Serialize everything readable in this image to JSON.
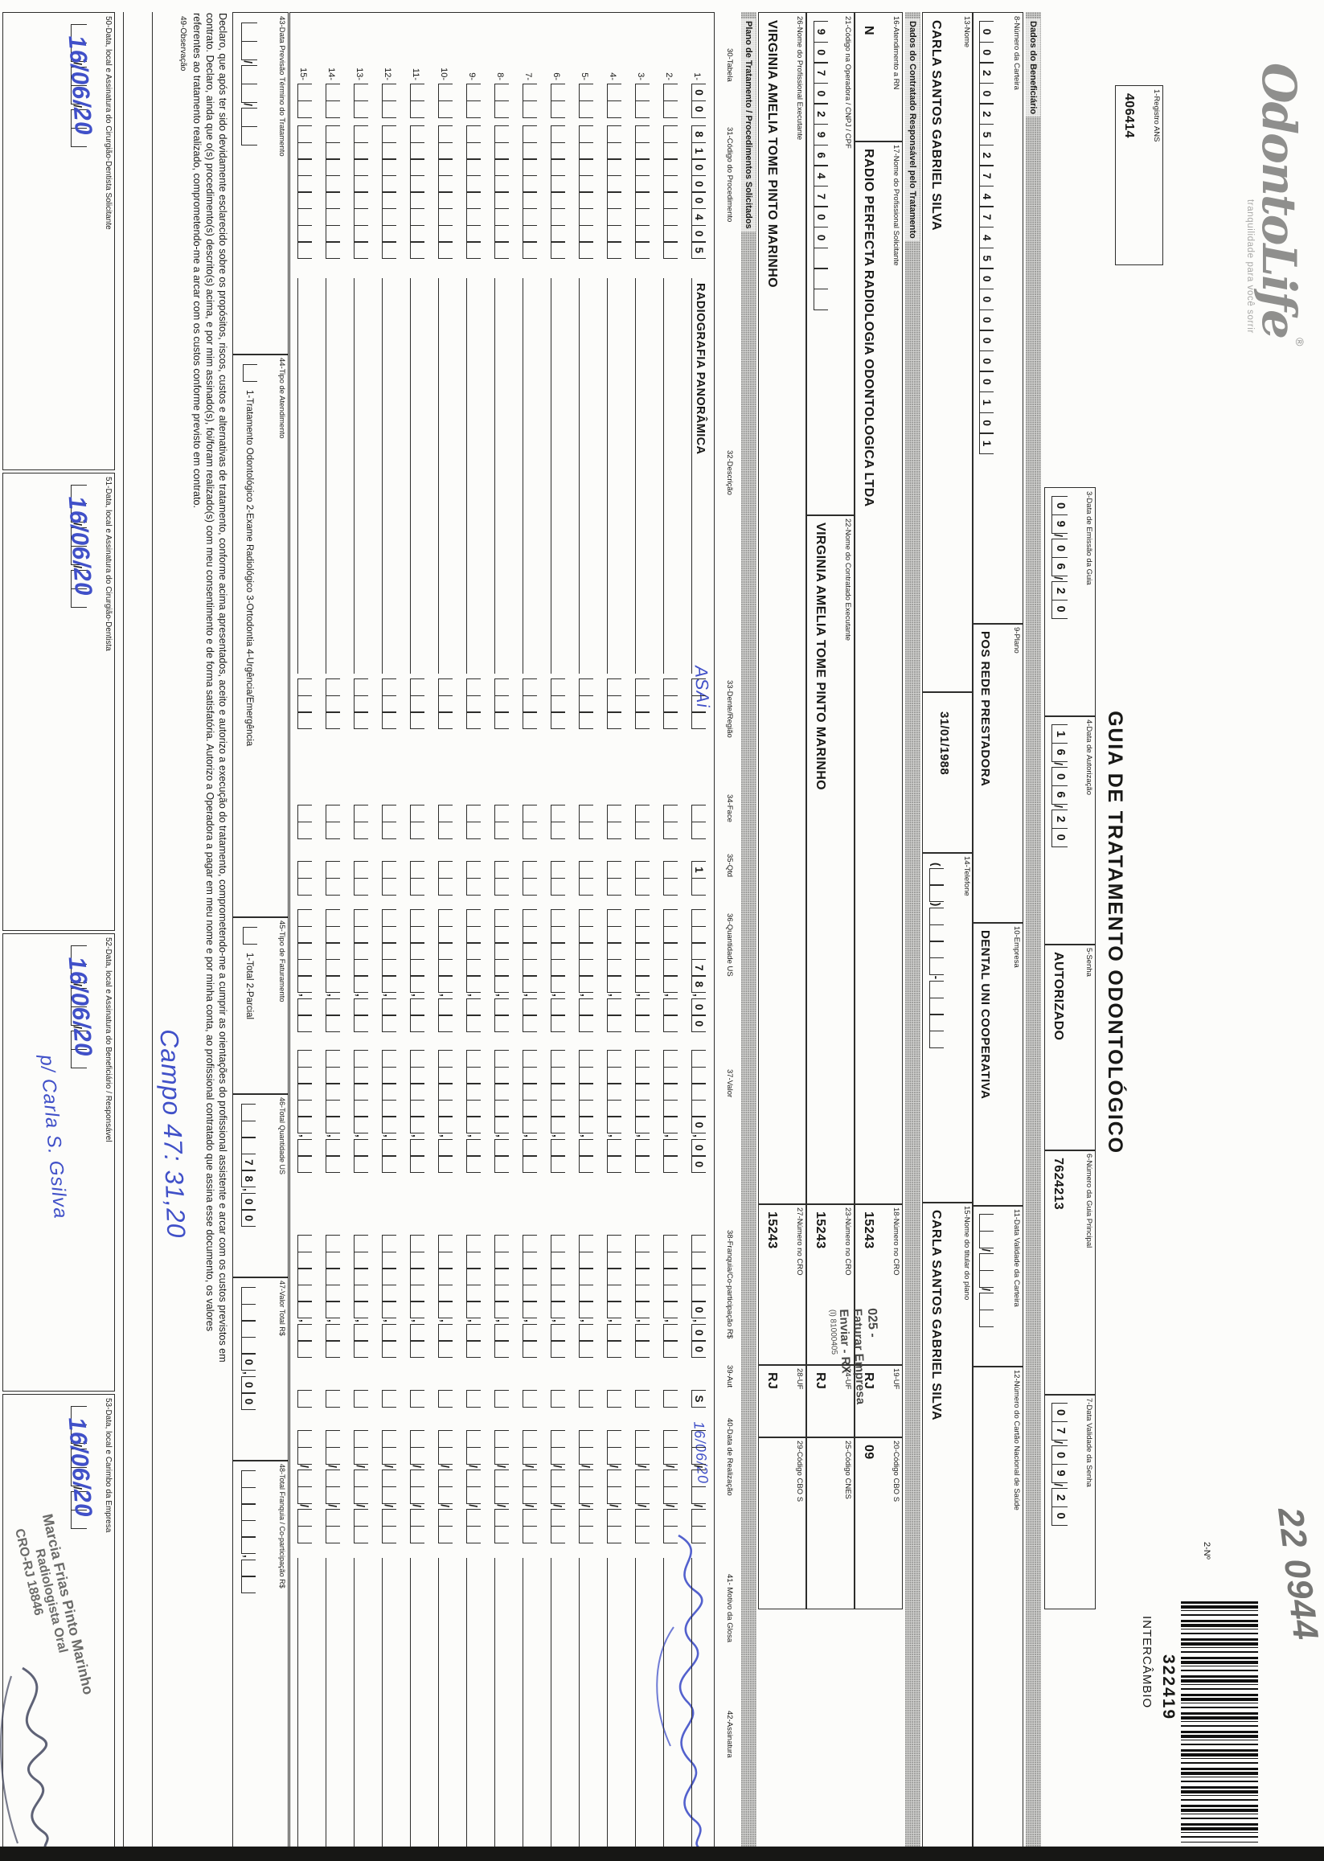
{
  "header": {
    "logo": "OdontoLife",
    "logo_reg": "®",
    "tagline": "tranquilidade para você sorrir",
    "pencil_note": "22 0944",
    "registro": {
      "label": "1-Registro ANS",
      "value": "406414"
    },
    "title": "GUIA DE TRATAMENTO ODONTOLÓGICO",
    "numero_label": "2-Nº",
    "barcode_number": "322419",
    "barcode_caption": "INTERCÂMBIO"
  },
  "guia": {
    "emissao": {
      "label": "3-Data de Emissão da Guia",
      "value": "09/06/20"
    },
    "autorizacao": {
      "label": "4-Data de Autorização",
      "value": "16/06/20"
    },
    "senha": {
      "label": "5-Senha",
      "value": "AUTORIZADO"
    },
    "guia_principal": {
      "label": "6-Número da Guia Principal",
      "value": "7624213"
    },
    "validade_senha": {
      "label": "7-Data Validade da Senha",
      "value": "07/09/20"
    }
  },
  "beneficiario": {
    "section": "Dados do Beneficiário",
    "carteira": {
      "label": "8-Número da Carteira",
      "value": "002025274745000000101"
    },
    "plano": {
      "label": "9-Plano",
      "value": "POS REDE PRESTADORA"
    },
    "empresa": {
      "label": "10-Empresa",
      "value": "DENTAL UNI COOPERATIVA"
    },
    "validade_carteira": {
      "label": "11-Data Validade da Carteira",
      "value": ""
    },
    "cns": {
      "label": "12-Número do Cartão Nacional de Saúde",
      "value": ""
    },
    "nome": {
      "label": "13-Nome",
      "value": "CARLA SANTOS GABRIEL SILVA"
    },
    "nascimento": {
      "value": "31/01/1988"
    },
    "telefone": {
      "label": "14-Telefone",
      "value": ""
    },
    "titular": {
      "label": "15-Nome do titular do plano",
      "value": "CARLA SANTOS GABRIEL SILVA"
    }
  },
  "contratado": {
    "section": "Dados do Contratado Responsável pelo Tratamento",
    "rn": {
      "label": "16-Atendimento a RN",
      "value": "N"
    },
    "solicitante": {
      "label": "17-Nome do Profissional Solicitante",
      "value": "RADIO PERFECTA RADIOLOGIA ODONTOLOGICA LTDA"
    },
    "cro_solicitante": {
      "label": "18-Número no CRO",
      "value": "15243"
    },
    "uf_solicitante": {
      "label": "19-UF",
      "value": "RJ"
    },
    "cbo_solicitante": {
      "label": "20-Código CBO S",
      "value": "09"
    },
    "codigo_operadora": {
      "label": "21-Código na Operadora / CNPJ / CPF",
      "value": "90702964700"
    },
    "executante": {
      "label": "22-Nome do Contratado Executante",
      "value": "VIRGINIA AMELIA TOME PINTO MARINHO"
    },
    "cro_executante": {
      "label": "23-Número no CRO",
      "value": "15243"
    },
    "uf_executante": {
      "label": "24-UF",
      "value": "RJ"
    },
    "cnes": {
      "label": "25-Código CNES",
      "value": ""
    },
    "stamp": {
      "line1": "025 -",
      "line2": "Faturar Empresa",
      "line3": "Enviar - RX",
      "line4": "(l) 81000405"
    },
    "profissional_executante": {
      "label": "26-Nome do Profissional Executante",
      "value": "VIRGINIA AMELIA TOME PINTO MARINHO"
    },
    "cro_profissional": {
      "label": "27-Número no CRO",
      "value": "15243"
    },
    "uf_profissional": {
      "label": "28-UF",
      "value": "RJ"
    },
    "cbo_profissional": {
      "label": "29-Código CBO S",
      "value": ""
    }
  },
  "tratamento": {
    "section": "Plano de Tratamento / Procedimentos Solicitados",
    "headers": {
      "tabela": "30-Tabela",
      "codigo": "31-Código do Procedimento",
      "descricao": "32-Descrição",
      "dente": "33-Dente/Região",
      "face": "34-Face",
      "qtd": "35-Qtd",
      "us": "36-Quantidade US",
      "valor": "37-Valor",
      "franquia": "38-Franquia/Co-participação R$",
      "aut": "39-Aut",
      "data": "40-Data de Realização",
      "glosa": "41- Motivo da Glosa",
      "assinatura": "42-Assinatura"
    },
    "row_numbers": [
      "1-",
      "2-",
      "3-",
      "4-",
      "5-",
      "6-",
      "7-",
      "8-",
      "9-",
      "10-",
      "11-",
      "12-",
      "13-",
      "14-",
      "15-"
    ],
    "row1": {
      "tabela": "00",
      "codigo": "81000405",
      "descricao": "RADIOGRAFIA PANORÂMICA",
      "dente_handwritten": "ASAi",
      "qtd": "1",
      "us": "78,00",
      "valor": "0,00",
      "franquia": "0,00",
      "aut": "S",
      "data_handwritten": "16/06/20"
    }
  },
  "totais": {
    "previsao": {
      "label": "43-Data Previsão Término do Tratamento",
      "value": ""
    },
    "tipo_atendimento": {
      "label": "44-Tipo de Atendimento",
      "options": "1-Tratamento Odontológico  2-Exame Radiológico  3-Ortodontia  4-Urgência/Emergência"
    },
    "tipo_faturamento": {
      "label": "45-Tipo de Faturamento",
      "options": "1-Total  2-Parcial"
    },
    "total_us": {
      "label": "46-Total Quantidade US",
      "value": "78,00"
    },
    "valor_total": {
      "label": "47-Valor Total R$",
      "value": "0,00"
    },
    "total_franquia": {
      "label": "48-Total Franquia / Co-participação R$",
      "value": ""
    }
  },
  "declaracao": {
    "line1": "Declaro, que após ter sido devidamente esclarecido sobre os propósitos, riscos, custos e alternativas de tratamento, conforme acima apresentados, aceito e autorizo a execução do tratamento, comprometendo-me a cumprir as orientações do profissional assistente e arcar com os custos previstos em",
    "line2": "contrato. Declaro, ainda que o(s) procedimento(s) descrito(s) acima, e por mim assinado(s), foi/foram realizado(s) com meu consentimento e de forma satisfatória. Autorizo a Operadora a pagar em meu nome e por minha conta, ao profissional contratado que assina esse documento, os valores",
    "line3": "referentes ao tratamento realizado, comprometendo-me a arcar com os custos conforme previsto em contrato."
  },
  "observacao": {
    "label": "49-Observação",
    "handwritten": "Campo 47: 31,20"
  },
  "assinaturas": {
    "cd_solicitante": {
      "label": "50-Data, local e Assinatura do Cirurgião-Dentista Solicitante",
      "date_handwritten": "16/06/20"
    },
    "cd": {
      "label": "51-Data, local e Assinatura do Cirurgião-Dentista",
      "date_handwritten": "16/06/20"
    },
    "beneficiario": {
      "label": "52-Data, local e Assinatura do Beneficiário / Responsável",
      "date_handwritten": "16/06/20",
      "name_handwritten": "p/ Carla S. Gsilva"
    },
    "empresa": {
      "label": "53-Data, local e Carimbo da Empresa",
      "date_handwritten": "16/06/20",
      "stamp_line1": "Marcia Frias Pinto Marinho",
      "stamp_line2": "Radiologista Oral",
      "stamp_line3": "CRO-RJ 18846"
    }
  }
}
